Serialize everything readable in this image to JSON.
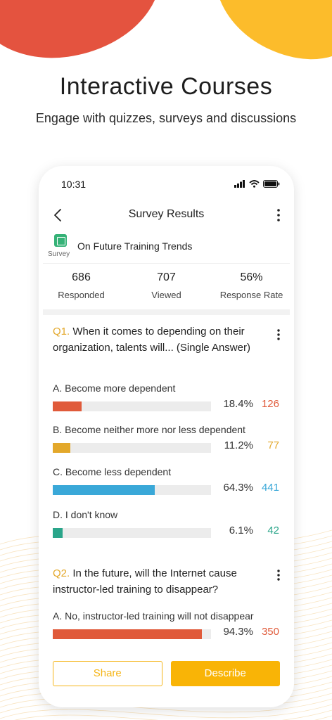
{
  "hero": {
    "title": "Interactive Courses",
    "subtitle": "Engage with quizzes, surveys and discussions"
  },
  "status_bar": {
    "time": "10:31"
  },
  "nav": {
    "title": "Survey Results"
  },
  "survey": {
    "tag": "Survey",
    "name": "On Future Training Trends"
  },
  "stats": [
    {
      "value": "686",
      "label": "Responded"
    },
    {
      "value": "707",
      "label": "Viewed"
    },
    {
      "value": "56%",
      "label": "Response Rate"
    }
  ],
  "questions": [
    {
      "number": "Q1.",
      "text": "When it comes to depending on their organization, talents will... (Single Answer)",
      "options": [
        {
          "label": "A. Become more dependent",
          "percent_text": "18.4%",
          "count": "126",
          "fraction": 0.184,
          "color": "#e05a3a"
        },
        {
          "label": "B. Become neither more nor less dependent",
          "percent_text": "11.2%",
          "count": "77",
          "fraction": 0.112,
          "color": "#e3a82b"
        },
        {
          "label": "C. Become less dependent",
          "percent_text": "64.3%",
          "count": "441",
          "fraction": 0.643,
          "color": "#3aa8d8"
        },
        {
          "label": "D. I don't know",
          "percent_text": "6.1%",
          "count": "42",
          "fraction": 0.061,
          "color": "#2aa58a"
        }
      ]
    },
    {
      "number": "Q2.",
      "text": "In the future, will the Internet cause instructor-led training to disappear?",
      "options": [
        {
          "label": "A. No, instructor-led training will not disappear",
          "percent_text": "94.3%",
          "count": "350",
          "fraction": 0.943,
          "color": "#e05a3a"
        }
      ]
    }
  ],
  "buttons": {
    "share": "Share",
    "describe": "Describe"
  },
  "colors": {
    "accent": "#f9b406",
    "brand_red": "#e4533f",
    "brand_yellow": "#fcbc2b"
  },
  "icons": [
    "back-arrow-icon",
    "more-vertical-icon",
    "signal-icon",
    "wifi-icon",
    "battery-icon",
    "survey-icon"
  ]
}
